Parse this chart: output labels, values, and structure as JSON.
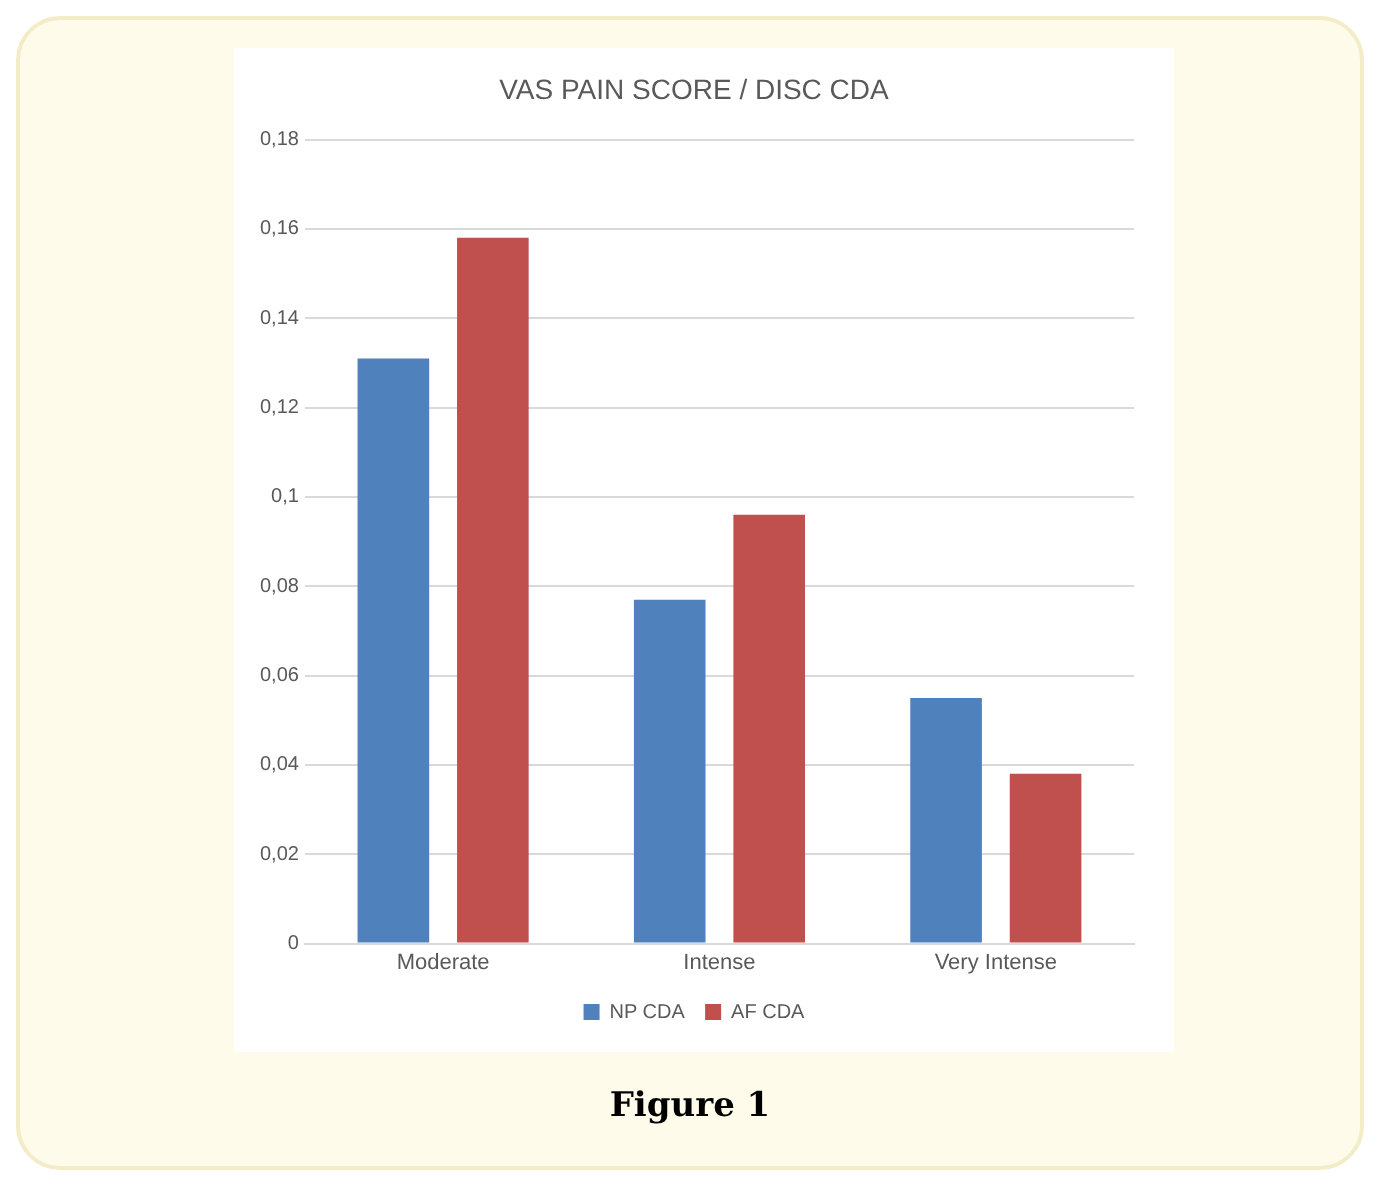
{
  "chart_data": {
    "type": "bar",
    "title": "VAS PAIN SCORE / DISC CDA",
    "categories": [
      "Moderate",
      "Intense",
      "Very Intense"
    ],
    "series": [
      {
        "name": "NP CDA",
        "color": "#4f81bd",
        "values": [
          0.131,
          0.077,
          0.055
        ]
      },
      {
        "name": "AF CDA",
        "color": "#c0504d",
        "values": [
          0.158,
          0.096,
          0.038
        ]
      }
    ],
    "ylim": [
      0,
      0.18
    ],
    "yticks": [
      0,
      {
        "value": 0.02,
        "label": "0,02"
      },
      {
        "value": 0.04,
        "label": "0,04"
      },
      {
        "value": 0.06,
        "label": "0,06"
      },
      {
        "value": 0.08,
        "label": "0,08"
      },
      {
        "value": 0.1,
        "label": "0,1"
      },
      {
        "value": 0.12,
        "label": "0,12"
      },
      {
        "value": 0.14,
        "label": "0,14"
      },
      {
        "value": 0.16,
        "label": "0,16"
      },
      {
        "value": 0.18,
        "label": "0,18"
      }
    ],
    "grid": "y",
    "legend": "bottom",
    "annotations": [
      "Figure 1"
    ]
  }
}
